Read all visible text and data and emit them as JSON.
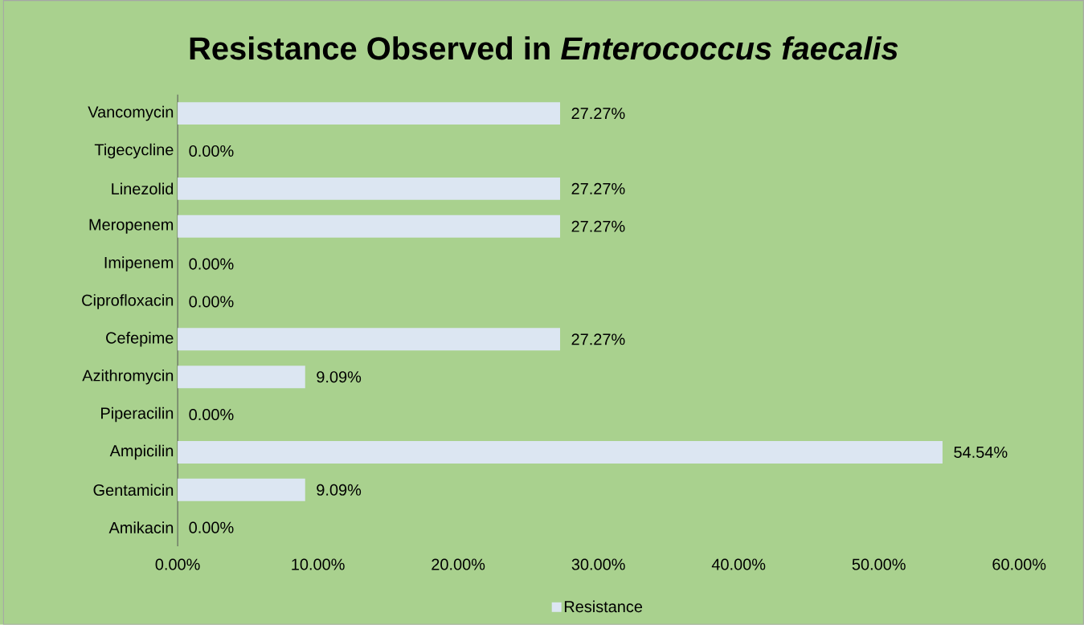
{
  "chart_data": {
    "type": "bar",
    "orientation": "horizontal",
    "title": "Resistance Observed in *Enterococcus faecalis*",
    "categories": [
      "Vancomycin",
      "Tigecycline",
      "Linezolid",
      "Meropenem",
      "Imipenem",
      "Ciprofloxacin",
      "Cefepime",
      "Azithromycin",
      "Piperacilin",
      "Ampicilin",
      "Gentamicin",
      "Amikacin"
    ],
    "series": [
      {
        "name": "Resistance",
        "color": "#dce6f2",
        "values": [
          27.27,
          0,
          27.27,
          27.27,
          0,
          0,
          27.27,
          9.09,
          0,
          54.54,
          9.09,
          0
        ],
        "value_labels": [
          "27.27%",
          "0.00%",
          "27.27%",
          "27.27%",
          "0.00%",
          "0.00%",
          "27.27%",
          "9.09%",
          "0.00%",
          "54.54%",
          "9.09%",
          "0.00%"
        ]
      }
    ],
    "xlim": [
      0,
      60
    ],
    "xticks": [
      {
        "value": 0,
        "label": "0.00%"
      },
      {
        "value": 10,
        "label": "10.00%"
      },
      {
        "value": 20,
        "label": "20.00%"
      },
      {
        "value": 30,
        "label": "30.00%"
      },
      {
        "value": 40,
        "label": "40.00%"
      },
      {
        "value": 50,
        "label": "50.00%"
      },
      {
        "value": 60,
        "label": "60.00%"
      }
    ],
    "legend": "bottom"
  }
}
